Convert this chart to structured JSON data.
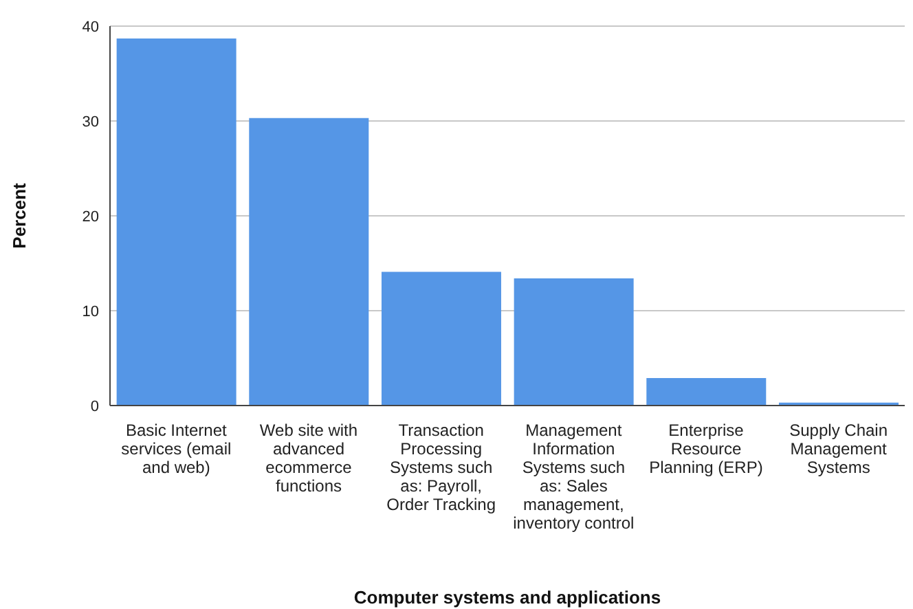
{
  "chart_data": {
    "type": "bar",
    "xlabel": "Computer systems and applications",
    "ylabel": "Percent",
    "categories": [
      "Basic Internet services (email and web)",
      "Web site with advanced ecommerce functions",
      "Transaction Processing Systems such as: Payroll, Order Tracking",
      "Management Information Systems such as: Sales management, inventory control",
      "Enterprise Resource Planning (ERP)",
      "Supply Chain Management Systems"
    ],
    "values": [
      38.7,
      30.3,
      14.1,
      13.4,
      2.9,
      0.3
    ],
    "color": "#5596e6",
    "ylim": [
      0,
      40
    ],
    "yticks": [
      0,
      10,
      20,
      30,
      40
    ],
    "grid": "y"
  }
}
